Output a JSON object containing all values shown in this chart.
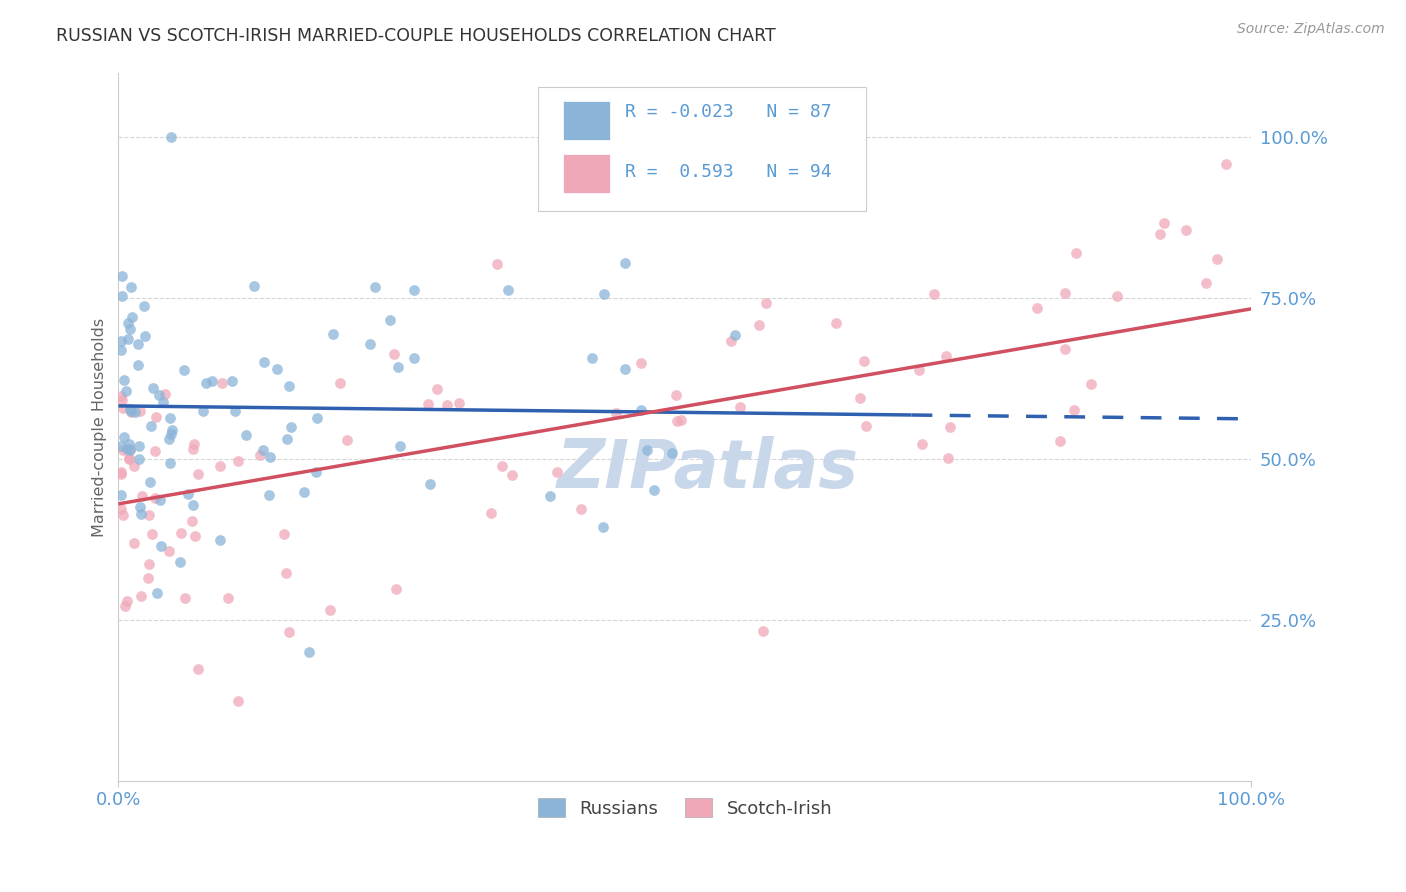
{
  "title": "RUSSIAN VS SCOTCH-IRISH MARRIED-COUPLE HOUSEHOLDS CORRELATION CHART",
  "source": "Source: ZipAtlas.com",
  "ylabel": "Married-couple Households",
  "xtick_left": "0.0%",
  "xtick_right": "100.0%",
  "ytick_labels": [
    "25.0%",
    "50.0%",
    "75.0%",
    "100.0%"
  ],
  "ytick_values": [
    25,
    50,
    75,
    100
  ],
  "legend_label1": "Russians",
  "legend_label2": "Scotch-Irish",
  "r1": -0.023,
  "n1": 87,
  "r2": 0.593,
  "n2": 94,
  "color_russian": "#8ab4d8",
  "color_scotch": "#f0a8b8",
  "color_trendline_russian": "#3060b0",
  "color_trendline_scotch": "#d05060",
  "color_axis_labels": "#5b9bd5",
  "color_grid": "#cccccc",
  "watermark_text": "ZIPatlas",
  "watermark_color": "#c8d8ea",
  "background_color": "#ffffff",
  "scatter_alpha": 0.75,
  "scatter_size": 60,
  "xlim": [
    0,
    100
  ],
  "ylim": [
    0,
    110
  ],
  "trend1_x_solid_end": 70,
  "trend1_start_y": 57,
  "trend1_slope": -0.04,
  "trend2_start_y": 40,
  "trend2_slope": 0.6
}
